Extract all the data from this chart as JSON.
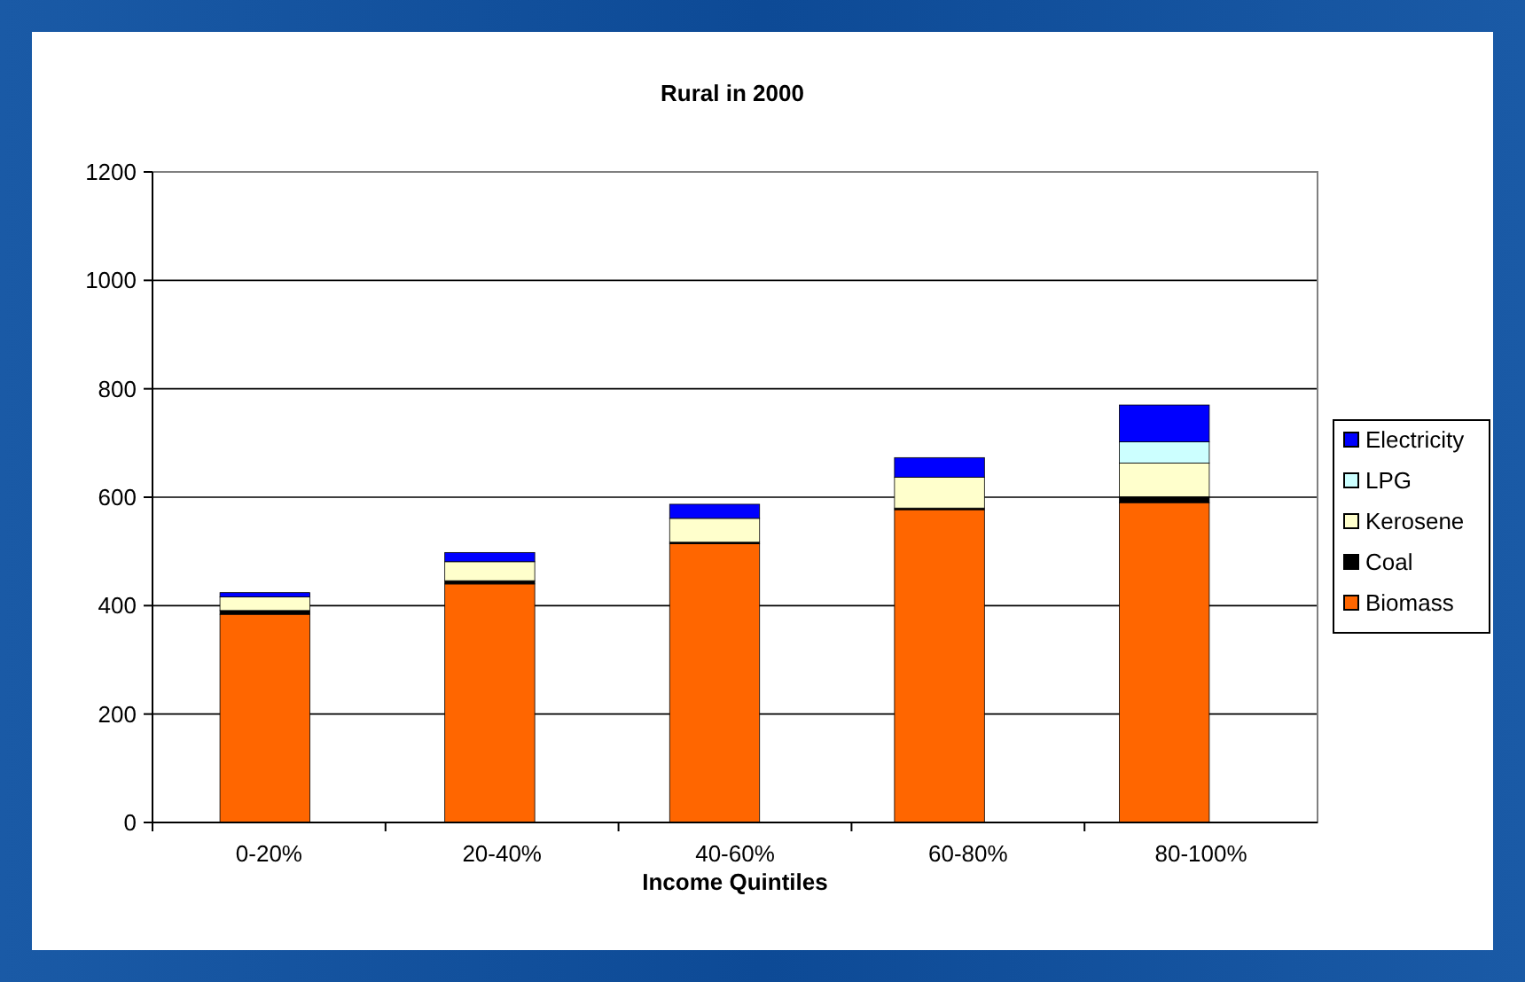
{
  "chart_data": {
    "type": "bar",
    "title": "Rural in 2000",
    "xlabel": "Income Quintiles",
    "categories": [
      "0-20%",
      "20-40%",
      "40-60%",
      "60-80%",
      "80-100%"
    ],
    "stacked": true,
    "ylim": [
      0,
      1200
    ],
    "yticks": [
      0,
      200,
      400,
      600,
      800,
      1000,
      1200
    ],
    "grid": "y",
    "legend": "right",
    "series": [
      {
        "name": "Biomass",
        "color": "#ff6600",
        "values": [
          384,
          440,
          514,
          577,
          590
        ]
      },
      {
        "name": "Coal",
        "color": "#000000",
        "values": [
          7,
          6,
          3,
          3,
          11
        ]
      },
      {
        "name": "Kerosene",
        "color": "#ffffcc",
        "values": [
          25,
          35,
          44,
          57,
          62
        ]
      },
      {
        "name": "LPG",
        "color": "#ccffff",
        "values": [
          0,
          0,
          0,
          0,
          39
        ]
      },
      {
        "name": "Electricity",
        "color": "#0000ff",
        "values": [
          8,
          17,
          26,
          36,
          68
        ]
      }
    ]
  }
}
